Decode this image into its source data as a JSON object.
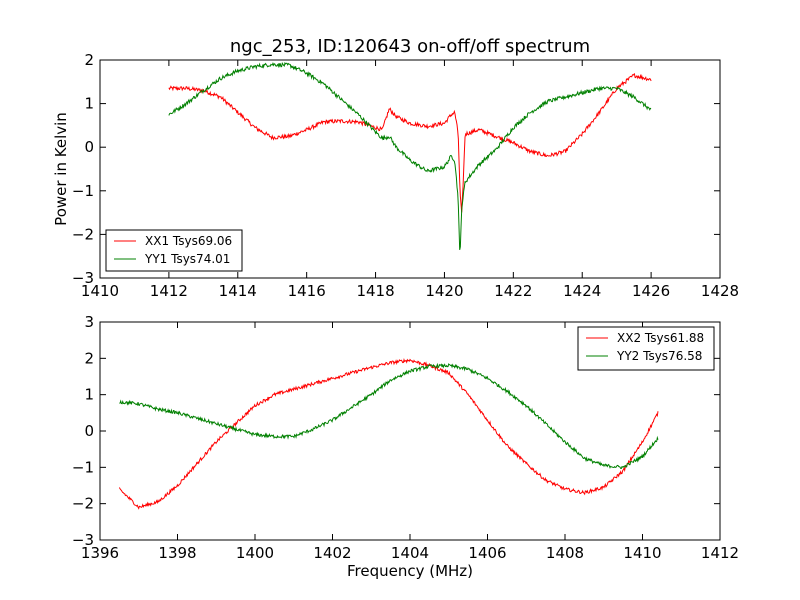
{
  "chart_data": [
    {
      "type": "line",
      "title": "ngc_253, ID:120643 on-off/off spectrum",
      "xlabel": "",
      "ylabel": "Power in Kelvin",
      "xlim": [
        1410,
        1428
      ],
      "ylim": [
        -3,
        2
      ],
      "xticks": [
        "1410",
        "1412",
        "1414",
        "1416",
        "1418",
        "1420",
        "1422",
        "1424",
        "1426",
        "1428"
      ],
      "yticks": [
        "−3",
        "−2",
        "−1",
        "0",
        "1",
        "2"
      ],
      "legend_position": "lower-left",
      "grid": false,
      "series": [
        {
          "name": "XX1 Tsys69.06",
          "color": "#ff0000",
          "points": [
            [
              1412.0,
              1.35
            ],
            [
              1412.5,
              1.35
            ],
            [
              1413.0,
              1.3
            ],
            [
              1413.5,
              1.15
            ],
            [
              1414.0,
              0.8
            ],
            [
              1414.5,
              0.45
            ],
            [
              1415.0,
              0.22
            ],
            [
              1415.5,
              0.25
            ],
            [
              1416.0,
              0.4
            ],
            [
              1416.5,
              0.58
            ],
            [
              1417.0,
              0.6
            ],
            [
              1417.5,
              0.58
            ],
            [
              1418.0,
              0.45
            ],
            [
              1418.2,
              0.4
            ],
            [
              1418.3,
              0.65
            ],
            [
              1418.4,
              0.88
            ],
            [
              1418.6,
              0.7
            ],
            [
              1419.0,
              0.55
            ],
            [
              1419.5,
              0.48
            ],
            [
              1420.0,
              0.55
            ],
            [
              1420.2,
              0.75
            ],
            [
              1420.3,
              0.8
            ],
            [
              1420.4,
              0.3
            ],
            [
              1420.45,
              -1.0
            ],
            [
              1420.5,
              -1.55
            ],
            [
              1420.55,
              -0.7
            ],
            [
              1420.6,
              0.3
            ],
            [
              1421.0,
              0.4
            ],
            [
              1421.5,
              0.25
            ],
            [
              1422.0,
              0.1
            ],
            [
              1422.5,
              -0.1
            ],
            [
              1423.0,
              -0.2
            ],
            [
              1423.5,
              -0.1
            ],
            [
              1424.0,
              0.3
            ],
            [
              1424.5,
              0.8
            ],
            [
              1425.0,
              1.35
            ],
            [
              1425.5,
              1.65
            ],
            [
              1426.0,
              1.55
            ]
          ]
        },
        {
          "name": "YY1 Tsys74.01",
          "color": "#008000",
          "points": [
            [
              1412.0,
              0.75
            ],
            [
              1412.5,
              1.0
            ],
            [
              1413.0,
              1.3
            ],
            [
              1413.5,
              1.58
            ],
            [
              1414.0,
              1.75
            ],
            [
              1414.5,
              1.85
            ],
            [
              1415.0,
              1.9
            ],
            [
              1415.5,
              1.88
            ],
            [
              1416.0,
              1.7
            ],
            [
              1416.5,
              1.45
            ],
            [
              1417.0,
              1.1
            ],
            [
              1417.5,
              0.75
            ],
            [
              1418.0,
              0.35
            ],
            [
              1418.2,
              0.2
            ],
            [
              1418.4,
              0.25
            ],
            [
              1418.6,
              0.0
            ],
            [
              1419.0,
              -0.3
            ],
            [
              1419.5,
              -0.55
            ],
            [
              1420.0,
              -0.45
            ],
            [
              1420.2,
              -0.2
            ],
            [
              1420.3,
              -0.3
            ],
            [
              1420.4,
              -1.2
            ],
            [
              1420.45,
              -2.6
            ],
            [
              1420.5,
              -1.4
            ],
            [
              1420.6,
              -0.8
            ],
            [
              1421.0,
              -0.4
            ],
            [
              1421.5,
              -0.05
            ],
            [
              1422.0,
              0.45
            ],
            [
              1422.5,
              0.8
            ],
            [
              1423.0,
              1.05
            ],
            [
              1423.5,
              1.15
            ],
            [
              1424.0,
              1.25
            ],
            [
              1424.5,
              1.35
            ],
            [
              1425.0,
              1.35
            ],
            [
              1425.5,
              1.15
            ],
            [
              1426.0,
              0.85
            ]
          ]
        }
      ]
    },
    {
      "type": "line",
      "title": "",
      "xlabel": "Frequency (MHz)",
      "ylabel": "",
      "xlim": [
        1396,
        1412
      ],
      "ylim": [
        -3,
        3
      ],
      "xticks": [
        "1396",
        "1398",
        "1400",
        "1402",
        "1404",
        "1406",
        "1408",
        "1410",
        "1412"
      ],
      "yticks": [
        "−3",
        "−2",
        "−1",
        "0",
        "1",
        "2",
        "3"
      ],
      "legend_position": "upper-right",
      "grid": false,
      "series": [
        {
          "name": "XX2 Tsys61.88",
          "color": "#ff0000",
          "points": [
            [
              1396.5,
              -1.6
            ],
            [
              1397.0,
              -2.1
            ],
            [
              1397.5,
              -1.95
            ],
            [
              1398.0,
              -1.5
            ],
            [
              1398.5,
              -0.9
            ],
            [
              1399.0,
              -0.3
            ],
            [
              1399.5,
              0.2
            ],
            [
              1400.0,
              0.7
            ],
            [
              1400.5,
              1.0
            ],
            [
              1401.0,
              1.15
            ],
            [
              1401.5,
              1.3
            ],
            [
              1402.0,
              1.45
            ],
            [
              1402.5,
              1.6
            ],
            [
              1403.0,
              1.75
            ],
            [
              1403.5,
              1.88
            ],
            [
              1404.0,
              1.95
            ],
            [
              1404.5,
              1.8
            ],
            [
              1405.0,
              1.6
            ],
            [
              1405.5,
              1.0
            ],
            [
              1406.0,
              0.3
            ],
            [
              1406.5,
              -0.4
            ],
            [
              1407.0,
              -0.9
            ],
            [
              1407.5,
              -1.35
            ],
            [
              1408.0,
              -1.6
            ],
            [
              1408.5,
              -1.7
            ],
            [
              1409.0,
              -1.55
            ],
            [
              1409.5,
              -1.1
            ],
            [
              1410.0,
              -0.3
            ],
            [
              1410.4,
              0.5
            ]
          ]
        },
        {
          "name": "YY2 Tsys76.58",
          "color": "#008000",
          "points": [
            [
              1396.5,
              0.8
            ],
            [
              1397.0,
              0.75
            ],
            [
              1397.5,
              0.6
            ],
            [
              1398.0,
              0.5
            ],
            [
              1398.5,
              0.35
            ],
            [
              1399.0,
              0.2
            ],
            [
              1399.5,
              0.05
            ],
            [
              1400.0,
              -0.1
            ],
            [
              1400.5,
              -0.15
            ],
            [
              1401.0,
              -0.15
            ],
            [
              1401.5,
              0.05
            ],
            [
              1402.0,
              0.3
            ],
            [
              1402.5,
              0.65
            ],
            [
              1403.0,
              1.0
            ],
            [
              1403.5,
              1.4
            ],
            [
              1404.0,
              1.65
            ],
            [
              1404.5,
              1.78
            ],
            [
              1405.0,
              1.8
            ],
            [
              1405.5,
              1.7
            ],
            [
              1406.0,
              1.45
            ],
            [
              1406.5,
              1.1
            ],
            [
              1407.0,
              0.7
            ],
            [
              1407.5,
              0.2
            ],
            [
              1408.0,
              -0.3
            ],
            [
              1408.5,
              -0.75
            ],
            [
              1409.0,
              -0.95
            ],
            [
              1409.5,
              -1.0
            ],
            [
              1410.0,
              -0.7
            ],
            [
              1410.4,
              -0.2
            ]
          ]
        }
      ]
    }
  ]
}
